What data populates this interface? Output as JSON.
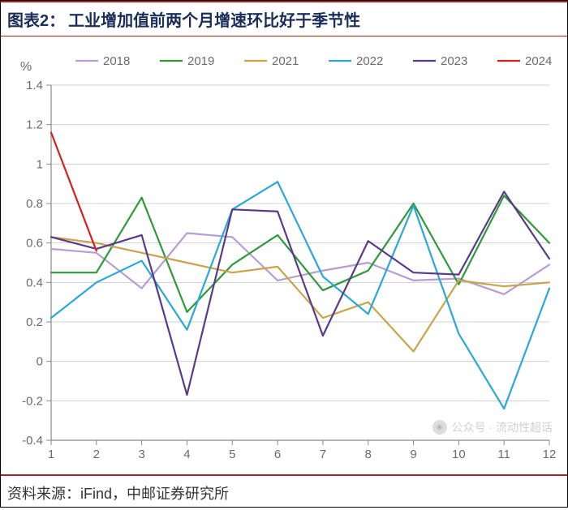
{
  "title": {
    "label": "图表2：",
    "text": "工业增加值前两个月增速环比好于季节性"
  },
  "footer": {
    "text": "资料来源：iFind，中邮证券研究所"
  },
  "watermark": {
    "text": "公众号 · 流动性超话"
  },
  "chart": {
    "type": "line",
    "y_axis_label": "%",
    "y_axis_label_fontsize": 16,
    "x_categories": [
      "1",
      "2",
      "3",
      "4",
      "5",
      "6",
      "7",
      "8",
      "9",
      "10",
      "11",
      "12"
    ],
    "ylim": [
      -0.4,
      1.4
    ],
    "ytick_step": 0.2,
    "yticks": [
      "-0.4",
      "-0.2",
      "0",
      "0.2",
      "0.4",
      "0.6",
      "0.8",
      "1",
      "1.2",
      "1.4"
    ],
    "axis_color": "#888888",
    "grid_color": "#d0d0d0",
    "grid_on": true,
    "tick_color": "#888888",
    "tick_label_color": "#6b6b6b",
    "tick_fontsize": 15,
    "plot_background": "#ffffff",
    "line_width": 2.2,
    "legend": {
      "position": "top",
      "fontsize": 15,
      "gap": 34,
      "swatch_width": 28,
      "label_color": "#6b6b6b"
    },
    "series": [
      {
        "name": "2018",
        "color": "#b89cd6",
        "values": [
          0.57,
          0.55,
          0.37,
          0.65,
          0.63,
          0.41,
          0.46,
          0.5,
          0.41,
          0.42,
          0.34,
          0.49
        ]
      },
      {
        "name": "2019",
        "color": "#2e9a3a",
        "values": [
          0.45,
          0.45,
          0.83,
          0.25,
          0.49,
          0.64,
          0.36,
          0.46,
          0.8,
          0.39,
          0.84,
          0.6
        ]
      },
      {
        "name": "2021",
        "color": "#c9a44a",
        "values": [
          0.63,
          0.6,
          0.55,
          0.5,
          0.45,
          0.48,
          0.22,
          0.3,
          0.05,
          0.41,
          0.38,
          0.4
        ]
      },
      {
        "name": "2022",
        "color": "#2aa8d8",
        "values": [
          0.22,
          0.4,
          0.51,
          0.16,
          0.77,
          0.91,
          0.43,
          0.24,
          0.79,
          0.14,
          -0.24,
          0.37
        ]
      },
      {
        "name": "2023",
        "color": "#5a3a8a",
        "values": [
          0.63,
          0.57,
          0.64,
          -0.17,
          0.77,
          0.76,
          0.13,
          0.61,
          0.45,
          0.44,
          0.86,
          0.52
        ]
      },
      {
        "name": "2024",
        "color": "#d61f1f",
        "values": [
          1.16,
          0.56
        ]
      }
    ]
  }
}
